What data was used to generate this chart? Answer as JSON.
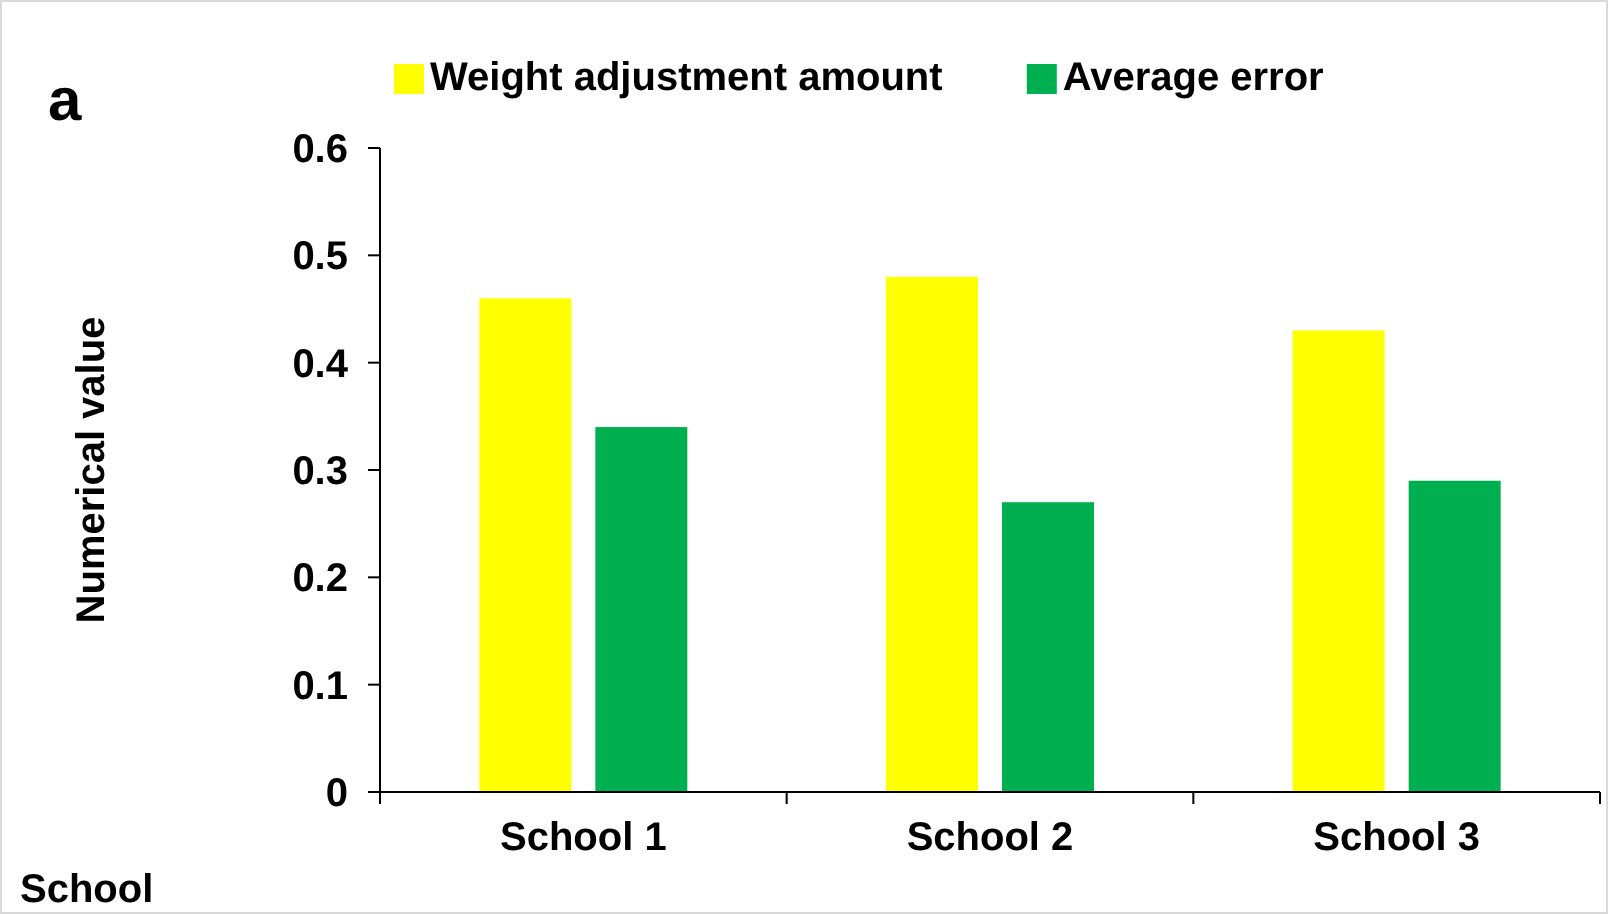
{
  "chart_data": {
    "type": "bar",
    "ylabel": "Numerical value",
    "xlabel": "School",
    "annotations": [
      "a"
    ],
    "categories": [
      "School 1",
      "School 2",
      "School 3"
    ],
    "series": [
      {
        "name": "Weight adjustment amount",
        "color": "#ffff00",
        "values": [
          0.46,
          0.48,
          0.43
        ]
      },
      {
        "name": "Average error",
        "color": "#00b050",
        "values": [
          0.34,
          0.27,
          0.29
        ]
      }
    ],
    "ylim": [
      0,
      0.6
    ],
    "yticks": [
      {
        "value": 0,
        "label": "0"
      },
      0.1,
      0.2,
      0.3,
      0.4,
      0.5,
      0.6
    ],
    "grid": false,
    "legend": "top"
  }
}
